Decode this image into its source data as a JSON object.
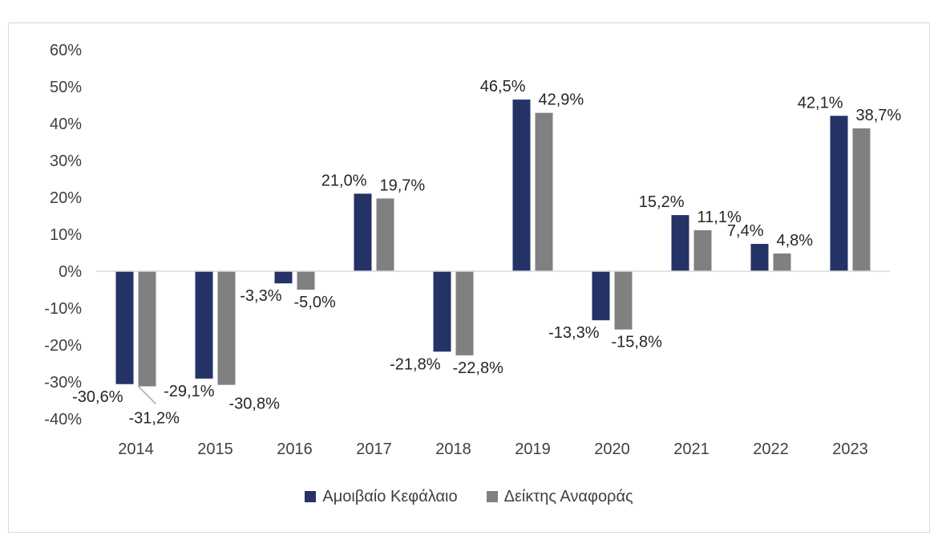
{
  "chart_data": {
    "type": "bar",
    "categories": [
      "2014",
      "2015",
      "2016",
      "2017",
      "2018",
      "2019",
      "2020",
      "2021",
      "2022",
      "2023"
    ],
    "series": [
      {
        "name": "Αμοιβαίο Κεφάλαιο",
        "color": "#243266",
        "values": [
          -30.6,
          -29.1,
          -3.3,
          21.0,
          -21.8,
          46.5,
          -13.3,
          15.2,
          7.4,
          42.1
        ],
        "labels": [
          "-30,6%",
          "-29,1%",
          "-3,3%",
          "21,0%",
          "-21,8%",
          "46,5%",
          "-13,3%",
          "15,2%",
          "7,4%",
          "42,1%"
        ]
      },
      {
        "name": "Δείκτης Αναφοράς",
        "color": "#808080",
        "values": [
          -31.2,
          -30.8,
          -5.0,
          19.7,
          -22.8,
          42.9,
          -15.8,
          11.1,
          4.8,
          38.7
        ],
        "labels": [
          "-31,2%",
          "-30,8%",
          "-5,0%",
          "19,7%",
          "-22,8%",
          "42,9%",
          "-15,8%",
          "11,1%",
          "4,8%",
          "38,7%"
        ]
      }
    ],
    "ylim": [
      -40,
      60
    ],
    "yticks": [
      60,
      50,
      40,
      30,
      20,
      10,
      0,
      -10,
      -20,
      -30,
      -40
    ],
    "ytick_labels": [
      "60%",
      "50%",
      "40%",
      "30%",
      "20%",
      "10%",
      "0%",
      "-10%",
      "-20%",
      "-30%",
      "-40%"
    ],
    "title": "",
    "xlabel": "",
    "ylabel": "",
    "grid": false,
    "legend": "bottom"
  }
}
